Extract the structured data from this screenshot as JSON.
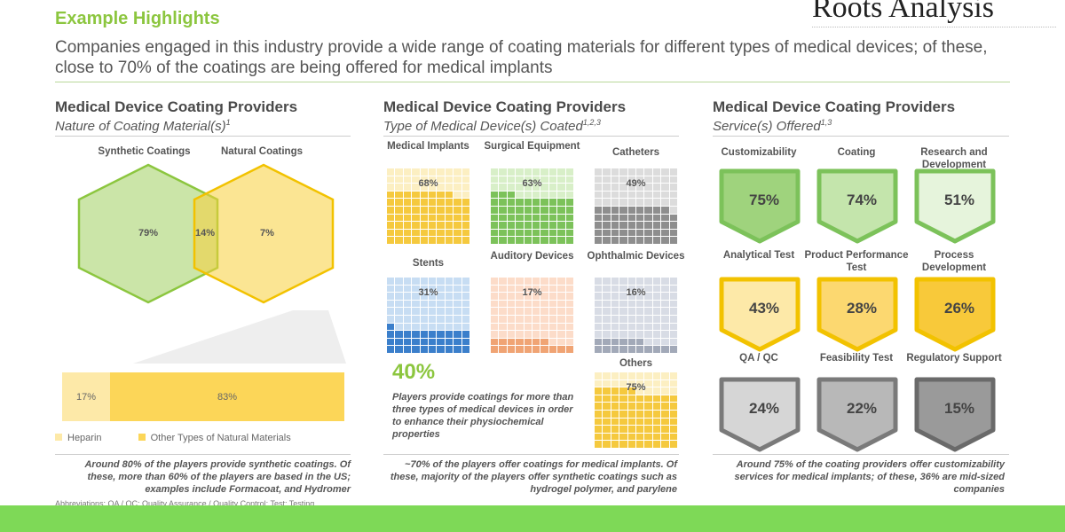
{
  "header": {
    "title": "Example Highlights",
    "logo_text": "Roots Analysis",
    "subtitle": "Companies engaged in this industry provide a wide range of coating materials for different types of medical devices; of these, close to 70% of the coatings are being offered for medical implants"
  },
  "left": {
    "title": "Medical Device Coating Providers",
    "subtitle": "Nature of Coating Material(s)",
    "sup": "1",
    "venn": {
      "a_label": "Synthetic Coatings",
      "b_label": "Natural Coatings",
      "a_only": "79%",
      "overlap": "14%",
      "b_only": "7%",
      "a_color": "#8cc63f",
      "b_color": "#f2c200"
    },
    "bar": {
      "segments": [
        {
          "name": "Heparin",
          "value": 17,
          "label": "17%",
          "color": "#fde9a8"
        },
        {
          "name": "Other Types of Natural Materials",
          "value": 83,
          "label": "83%",
          "color": "#fcd658"
        }
      ]
    },
    "footnote": "Around 80% of the players provide synthetic coatings. Of these, more than 60% of the players are based in the US; examples include Formacoat, and Hydromer",
    "abbrev": "Abbreviations: QA / QC: Quality Assurance / Quality Control; Test: Testing"
  },
  "middle": {
    "title": "Medical Device Coating Providers",
    "subtitle": "Type of Medical Device(s) Coated",
    "sup": "1,2,3",
    "waffles": [
      {
        "label": "Medical Implants",
        "value": 68,
        "pct": "68%",
        "light": "#fcefc2",
        "dark": "#f5c93e"
      },
      {
        "label": "Surgical Equipment",
        "value": 63,
        "pct": "63%",
        "light": "#d8efc8",
        "dark": "#7cc25a"
      },
      {
        "label": "Catheters",
        "value": 49,
        "pct": "49%",
        "light": "#dcdcdc",
        "dark": "#8e8e8e"
      },
      {
        "label": "Stents",
        "value": 31,
        "pct": "31%",
        "light": "#c7ddf3",
        "dark": "#3b7fcb"
      },
      {
        "label": "Auditory Devices",
        "value": 17,
        "pct": "17%",
        "light": "#fcdcc9",
        "dark": "#f0a474"
      },
      {
        "label": "Ophthalmic Devices",
        "value": 16,
        "pct": "16%",
        "light": "#d8dce5",
        "dark": "#a2a9b8"
      },
      {
        "label": "Others",
        "value": 75,
        "pct": "75%",
        "light": "#fcefc2",
        "dark": "#f5c93e"
      }
    ],
    "highlight_value": "40%",
    "highlight_text": "Players provide coatings for more than three types of medical devices in order to enhance their physiochemical properties",
    "footnote": "~70% of the players offer coatings for medical implants. Of these, majority of the players offer synthetic coatings such as hydrogel polymer, and parylene"
  },
  "right": {
    "title": "Medical Device Coating Providers",
    "subtitle": "Service(s) Offered",
    "sup": "1,3",
    "services": [
      {
        "label": "Customizability",
        "pct": "75%",
        "border": "#7cc25a",
        "fill": "#9fd37d"
      },
      {
        "label": "Coating",
        "pct": "74%",
        "border": "#7cc25a",
        "fill": "#c4e5ac"
      },
      {
        "label": "Research and Development",
        "pct": "51%",
        "border": "#7cc25a",
        "fill": "#e6f4dc"
      },
      {
        "label": "Analytical Test",
        "pct": "43%",
        "border": "#f2c200",
        "fill": "#fde9a8"
      },
      {
        "label": "Product Performance Test",
        "pct": "28%",
        "border": "#f2c200",
        "fill": "#fcd870"
      },
      {
        "label": "Process Development",
        "pct": "26%",
        "border": "#f2c200",
        "fill": "#f8c93a"
      },
      {
        "label": "QA / QC",
        "pct": "24%",
        "border": "#7a7a7a",
        "fill": "#d6d6d6"
      },
      {
        "label": "Feasibility Test",
        "pct": "22%",
        "border": "#7a7a7a",
        "fill": "#b8b8b8"
      },
      {
        "label": "Regulatory Support",
        "pct": "15%",
        "border": "#6a6a6a",
        "fill": "#9a9a9a"
      }
    ],
    "footnote": "Around 75% of the coating providers offer customizability services for medical implants; of these, 36% are mid-sized companies"
  },
  "footer_bar_color": "#7ed957"
}
